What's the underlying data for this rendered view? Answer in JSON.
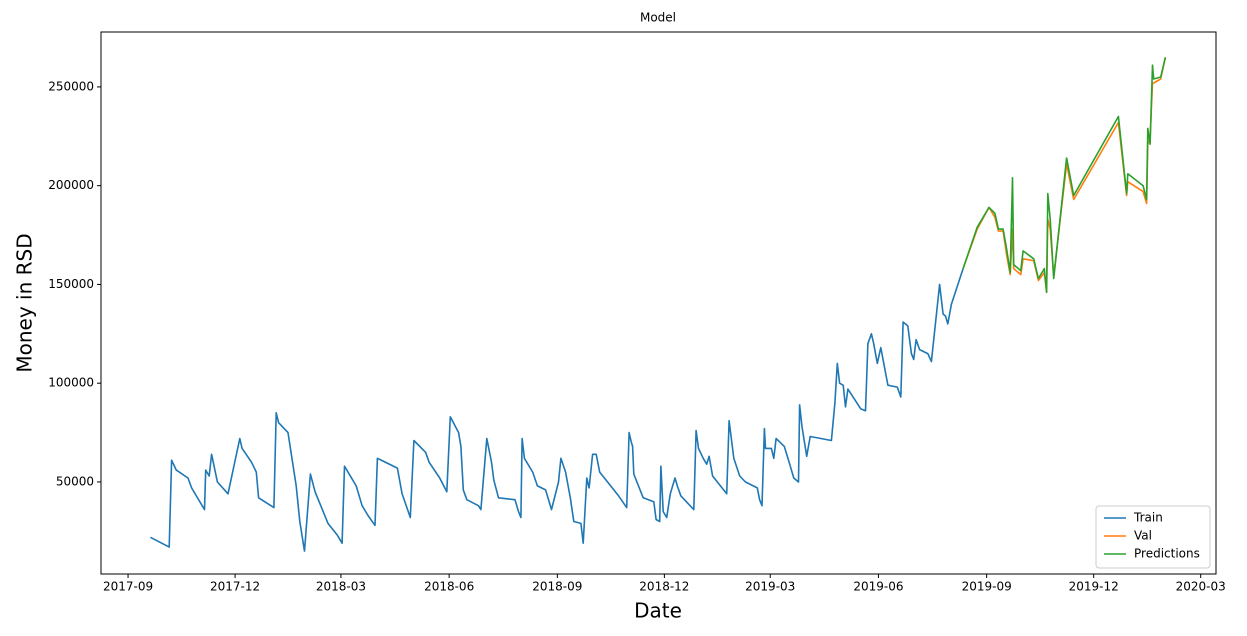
{
  "chart_data": {
    "type": "line",
    "title": "Model",
    "xlabel": "Date",
    "ylabel": "Money in RSD",
    "xlim": [
      "2017-08-09",
      "2020-03-14"
    ],
    "xticks": [
      {
        "value": "2017-09-01",
        "label": "2017-09"
      },
      {
        "value": "2017-12-01",
        "label": "2017-12"
      },
      {
        "value": "2018-03-01",
        "label": "2018-03"
      },
      {
        "value": "2018-06-01",
        "label": "2018-06"
      },
      {
        "value": "2018-09-01",
        "label": "2018-09"
      },
      {
        "value": "2018-12-01",
        "label": "2018-12"
      },
      {
        "value": "2019-03-01",
        "label": "2019-03"
      },
      {
        "value": "2019-06-01",
        "label": "2019-06"
      },
      {
        "value": "2019-09-01",
        "label": "2019-09"
      },
      {
        "value": "2019-12-01",
        "label": "2019-12"
      },
      {
        "value": "2020-03-01",
        "label": "2020-03"
      }
    ],
    "ylim": [
      3400,
      277800
    ],
    "yticks": [
      50000,
      100000,
      150000,
      200000,
      250000
    ],
    "legend": "lower right",
    "series": [
      {
        "name": "Train",
        "color": "#1f77b4",
        "x": [
          "2017-09-20",
          "2017-10-06",
          "2017-10-08",
          "2017-10-12",
          "2017-10-22",
          "2017-10-25",
          "2017-11-05",
          "2017-11-06",
          "2017-11-09",
          "2017-11-11",
          "2017-11-16",
          "2017-11-25",
          "2017-12-05",
          "2017-12-07",
          "2017-12-15",
          "2017-12-19",
          "2017-12-21",
          "2018-01-03",
          "2018-01-05",
          "2018-01-07",
          "2018-01-15",
          "2018-01-22",
          "2018-01-25",
          "2018-01-29",
          "2018-02-03",
          "2018-02-07",
          "2018-02-18",
          "2018-02-26",
          "2018-03-02",
          "2018-03-04",
          "2018-03-14",
          "2018-03-19",
          "2018-03-24",
          "2018-03-30",
          "2018-04-01",
          "2018-04-18",
          "2018-04-22",
          "2018-04-29",
          "2018-05-02",
          "2018-05-12",
          "2018-05-15",
          "2018-05-24",
          "2018-05-30",
          "2018-06-02",
          "2018-06-09",
          "2018-06-11",
          "2018-06-13",
          "2018-06-16",
          "2018-06-26",
          "2018-06-28",
          "2018-07-03",
          "2018-07-07",
          "2018-07-09",
          "2018-07-13",
          "2018-07-27",
          "2018-07-30",
          "2018-08-01",
          "2018-08-02",
          "2018-08-04",
          "2018-08-11",
          "2018-08-15",
          "2018-08-22",
          "2018-08-27",
          "2018-09-02",
          "2018-09-04",
          "2018-09-08",
          "2018-09-12",
          "2018-09-15",
          "2018-09-21",
          "2018-09-23",
          "2018-09-26",
          "2018-09-28",
          "2018-10-01",
          "2018-10-04",
          "2018-10-07",
          "2018-10-11",
          "2018-10-23",
          "2018-10-30",
          "2018-11-01",
          "2018-11-03",
          "2018-11-04",
          "2018-11-05",
          "2018-11-09",
          "2018-11-13",
          "2018-11-22",
          "2018-11-24",
          "2018-11-27",
          "2018-11-28",
          "2018-11-30",
          "2018-12-03",
          "2018-12-06",
          "2018-12-10",
          "2018-12-12",
          "2018-12-15",
          "2018-12-26",
          "2018-12-28",
          "2018-12-30",
          "2019-01-03",
          "2019-01-06",
          "2019-01-08",
          "2019-01-11",
          "2019-01-23",
          "2019-01-25",
          "2019-01-29",
          "2019-02-03",
          "2019-02-08",
          "2019-02-18",
          "2019-02-20",
          "2019-02-22",
          "2019-02-24",
          "2019-02-25",
          "2019-03-02",
          "2019-03-04",
          "2019-03-06",
          "2019-03-13",
          "2019-03-17",
          "2019-03-21",
          "2019-03-25",
          "2019-03-26",
          "2019-03-28",
          "2019-04-01",
          "2019-04-04",
          "2019-04-22",
          "2019-04-25",
          "2019-04-27",
          "2019-04-29",
          "2019-05-02",
          "2019-05-04",
          "2019-05-06",
          "2019-05-17",
          "2019-05-21",
          "2019-05-23",
          "2019-05-26",
          "2019-05-28",
          "2019-05-31",
          "2019-06-03",
          "2019-06-09",
          "2019-06-17",
          "2019-06-20",
          "2019-06-22",
          "2019-06-26",
          "2019-06-29",
          "2019-07-01",
          "2019-07-03",
          "2019-07-06",
          "2019-07-13",
          "2019-07-16",
          "2019-07-23",
          "2019-07-26",
          "2019-07-28",
          "2019-07-30",
          "2019-08-02",
          "2019-08-12"
        ],
        "values": [
          22000,
          17000,
          61000,
          56000,
          52000,
          47000,
          36000,
          56000,
          53000,
          64000,
          50000,
          44000,
          72000,
          67000,
          60000,
          55000,
          42000,
          37000,
          85000,
          80000,
          75000,
          48000,
          30000,
          15000,
          54000,
          45000,
          29000,
          23000,
          19000,
          58000,
          48000,
          38000,
          33000,
          28000,
          62000,
          57000,
          44000,
          32000,
          71000,
          65000,
          60000,
          52000,
          45000,
          83000,
          75000,
          68000,
          46000,
          41000,
          38000,
          36000,
          72000,
          60000,
          51000,
          42000,
          41000,
          35000,
          32000,
          72000,
          62000,
          55000,
          48000,
          46000,
          36000,
          50000,
          62000,
          55000,
          42000,
          30000,
          29000,
          19000,
          52000,
          47000,
          64000,
          64000,
          55000,
          52000,
          43000,
          37000,
          75000,
          70000,
          68000,
          54000,
          48000,
          42000,
          40000,
          31000,
          30000,
          58000,
          35000,
          32000,
          44000,
          52000,
          48000,
          43000,
          36000,
          76000,
          67000,
          62000,
          59000,
          63000,
          53000,
          44000,
          81000,
          62000,
          53000,
          50000,
          47000,
          41000,
          38000,
          77000,
          67000,
          67000,
          62000,
          72000,
          68000,
          60000,
          52000,
          50000,
          89000,
          78000,
          63000,
          73000,
          71000,
          90000,
          110000,
          100000,
          99000,
          88000,
          97000,
          87000,
          86000,
          120000,
          125000,
          120000,
          110000,
          118000,
          99000,
          98000,
          93000,
          131000,
          129000,
          115000,
          112000,
          122000,
          117000,
          115000,
          111000,
          150000,
          135000,
          134000,
          130000,
          140000,
          158000
        ]
      },
      {
        "name": "Val",
        "color": "#ff7f0e",
        "x": [
          "2019-08-12",
          "2019-08-24",
          "2019-09-03",
          "2019-09-08",
          "2019-09-11",
          "2019-09-15",
          "2019-09-18",
          "2019-09-21",
          "2019-09-23",
          "2019-09-24",
          "2019-09-30",
          "2019-10-02",
          "2019-10-11",
          "2019-10-15",
          "2019-10-20",
          "2019-10-22",
          "2019-10-23",
          "2019-10-25",
          "2019-10-28",
          "2019-11-08",
          "2019-11-14",
          "2019-12-22",
          "2019-12-29",
          "2019-12-30",
          "2020-01-12",
          "2020-01-15",
          "2020-01-16",
          "2020-01-18",
          "2020-01-20",
          "2020-01-21",
          "2020-01-27",
          "2020-01-31"
        ],
        "values": [
          158000,
          178000,
          189000,
          184000,
          177000,
          177000,
          165000,
          155000,
          178000,
          158000,
          155000,
          163000,
          162000,
          152000,
          156000,
          146000,
          183000,
          178000,
          154000,
          211000,
          193000,
          232000,
          195000,
          202000,
          197000,
          191000,
          221000,
          224000,
          252000,
          252000,
          254000,
          265000
        ]
      },
      {
        "name": "Predictions",
        "color": "#2ca02c",
        "x": [
          "2019-08-12",
          "2019-08-24",
          "2019-09-03",
          "2019-09-08",
          "2019-09-11",
          "2019-09-15",
          "2019-09-18",
          "2019-09-21",
          "2019-09-23",
          "2019-09-24",
          "2019-09-30",
          "2019-10-02",
          "2019-10-11",
          "2019-10-15",
          "2019-10-20",
          "2019-10-22",
          "2019-10-23",
          "2019-10-25",
          "2019-10-28",
          "2019-11-08",
          "2019-11-14",
          "2019-12-22",
          "2019-12-29",
          "2019-12-30",
          "2020-01-12",
          "2020-01-15",
          "2020-01-16",
          "2020-01-18",
          "2020-01-20",
          "2020-01-21",
          "2020-01-27",
          "2020-01-31"
        ],
        "values": [
          158000,
          179000,
          189000,
          186000,
          178000,
          178000,
          168000,
          156000,
          204000,
          160000,
          157000,
          167000,
          163000,
          153000,
          158000,
          146000,
          196000,
          183000,
          153000,
          214000,
          195000,
          235000,
          196000,
          206000,
          200000,
          193000,
          229000,
          221000,
          261000,
          254000,
          255000,
          265000
        ]
      }
    ]
  }
}
